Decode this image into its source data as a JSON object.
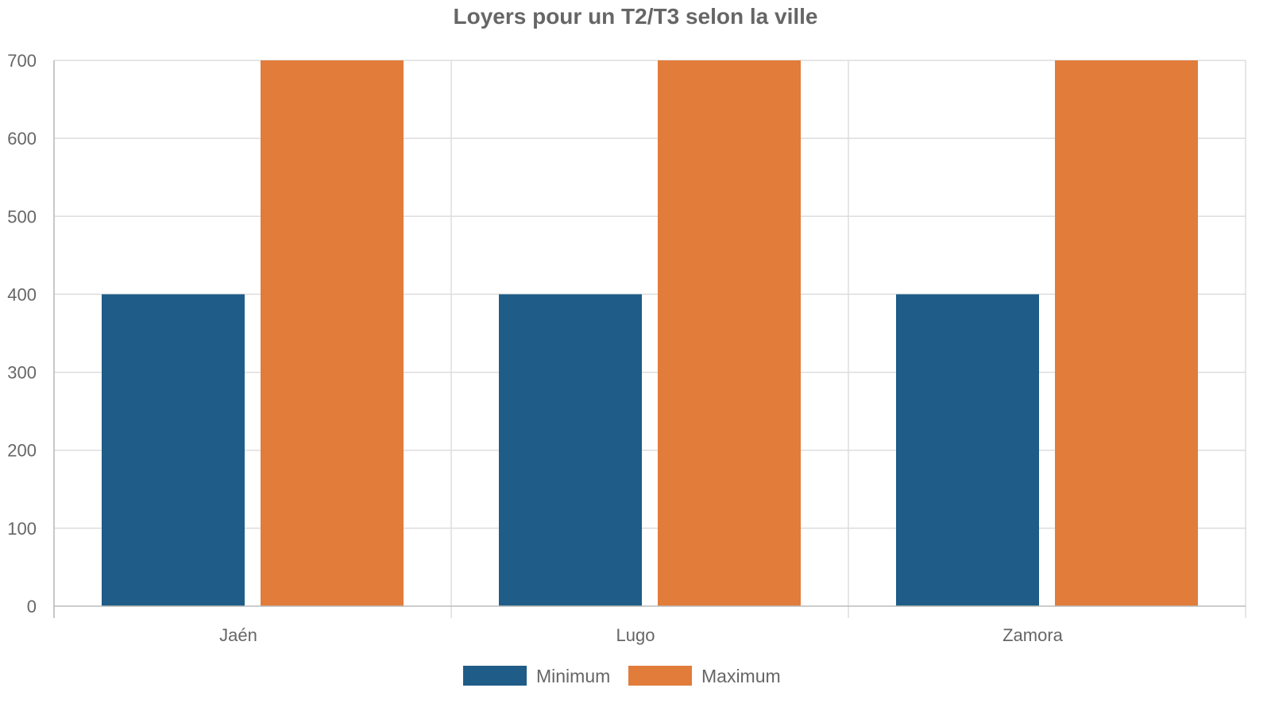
{
  "chart_data": {
    "type": "bar",
    "title": "Loyers pour un T2/T3 selon la ville",
    "categories": [
      "Jaén",
      "Lugo",
      "Zamora"
    ],
    "series": [
      {
        "name": "Minimum",
        "values": [
          400,
          400,
          400
        ],
        "color": "#1f5c87"
      },
      {
        "name": "Maximum",
        "values": [
          700,
          700,
          700
        ],
        "color": "#e17c3b"
      }
    ],
    "y_ticks": [
      0,
      100,
      200,
      300,
      400,
      500,
      600,
      700
    ],
    "ylim": [
      0,
      700
    ],
    "grid": true,
    "legend": "bottom-center"
  }
}
